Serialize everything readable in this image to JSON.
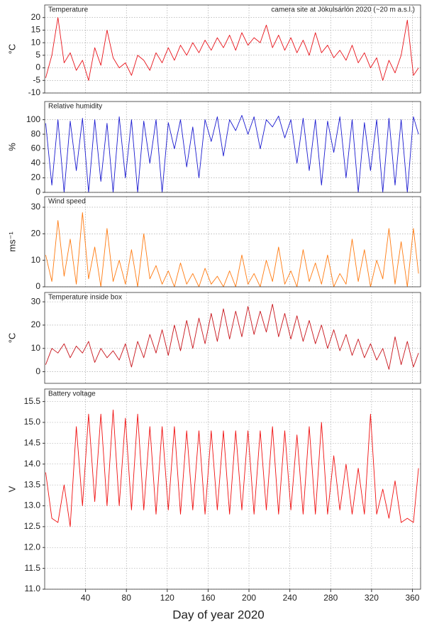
{
  "chart_data": [
    {
      "type": "line",
      "title": "Temperature",
      "annotation": "camera site at Jökulsárlón 2020 (~20  m a.s.l.)",
      "ylabel": "°C",
      "color": "#e8141b",
      "x": [
        1,
        7,
        13,
        19,
        25,
        31,
        37,
        43,
        49,
        55,
        61,
        67,
        73,
        79,
        85,
        91,
        97,
        103,
        109,
        115,
        121,
        127,
        133,
        139,
        145,
        151,
        157,
        163,
        169,
        175,
        181,
        187,
        193,
        199,
        205,
        211,
        217,
        223,
        229,
        235,
        241,
        247,
        253,
        259,
        265,
        271,
        277,
        283,
        289,
        295,
        301,
        307,
        313,
        319,
        325,
        331,
        337,
        343,
        349,
        355,
        361,
        366
      ],
      "values": [
        -4,
        5,
        20,
        2,
        6,
        -1,
        3,
        -5,
        8,
        1,
        15,
        4,
        0,
        2,
        -3,
        5,
        3,
        -1,
        6,
        2,
        8,
        3,
        9,
        5,
        10,
        6,
        11,
        7,
        12,
        8,
        13,
        7,
        14,
        9,
        12,
        10,
        17,
        8,
        13,
        7,
        12,
        6,
        11,
        5,
        14,
        6,
        9,
        4,
        7,
        3,
        9,
        2,
        6,
        0,
        4,
        -5,
        3,
        -2,
        5,
        19,
        -3,
        0
      ],
      "xlim": [
        0,
        368
      ],
      "xticks": [
        40,
        80,
        120,
        160,
        200,
        240,
        280,
        320,
        360
      ],
      "ylim": [
        -10,
        25
      ],
      "yticks": [
        -10,
        -5,
        0,
        5,
        10,
        15,
        20
      ],
      "grid": true
    },
    {
      "type": "line",
      "title": "Relative humidity",
      "ylabel": "%",
      "color": "#1a1ad0",
      "x": [
        1,
        7,
        13,
        19,
        25,
        31,
        37,
        43,
        49,
        55,
        61,
        67,
        73,
        79,
        85,
        91,
        97,
        103,
        109,
        115,
        121,
        127,
        133,
        139,
        145,
        151,
        157,
        163,
        169,
        175,
        181,
        187,
        193,
        199,
        205,
        211,
        217,
        223,
        229,
        235,
        241,
        247,
        253,
        259,
        265,
        271,
        277,
        283,
        289,
        295,
        301,
        307,
        313,
        319,
        325,
        331,
        337,
        343,
        349,
        355,
        361,
        366
      ],
      "values": [
        95,
        10,
        100,
        0,
        98,
        30,
        102,
        0,
        100,
        15,
        95,
        0,
        104,
        20,
        100,
        0,
        98,
        40,
        100,
        0,
        96,
        60,
        100,
        35,
        90,
        20,
        100,
        70,
        104,
        50,
        100,
        85,
        106,
        80,
        104,
        60,
        100,
        90,
        105,
        75,
        100,
        40,
        102,
        30,
        100,
        10,
        98,
        55,
        104,
        20,
        100,
        0,
        96,
        30,
        100,
        0,
        102,
        10,
        100,
        0,
        104,
        80
      ],
      "xlim": [
        0,
        368
      ],
      "xticks": [
        40,
        80,
        120,
        160,
        200,
        240,
        280,
        320,
        360
      ],
      "ylim": [
        0,
        125
      ],
      "yticks": [
        0,
        20,
        40,
        60,
        80,
        100
      ],
      "grid": true
    },
    {
      "type": "line",
      "title": "Wind speed",
      "ylabel": "ms⁻¹",
      "color": "#ff7a10",
      "x": [
        1,
        7,
        13,
        19,
        25,
        31,
        37,
        43,
        49,
        55,
        61,
        67,
        73,
        79,
        85,
        91,
        97,
        103,
        109,
        115,
        121,
        127,
        133,
        139,
        145,
        151,
        157,
        163,
        169,
        175,
        181,
        187,
        193,
        199,
        205,
        211,
        217,
        223,
        229,
        235,
        241,
        247,
        253,
        259,
        265,
        271,
        277,
        283,
        289,
        295,
        301,
        307,
        313,
        319,
        325,
        331,
        337,
        343,
        349,
        355,
        361,
        366
      ],
      "values": [
        12,
        2,
        25,
        4,
        18,
        1,
        28,
        3,
        15,
        0,
        22,
        2,
        10,
        1,
        14,
        0,
        20,
        3,
        8,
        1,
        6,
        0,
        9,
        1,
        5,
        0,
        7,
        1,
        4,
        0,
        6,
        0,
        12,
        1,
        5,
        0,
        10,
        2,
        15,
        1,
        6,
        0,
        14,
        2,
        9,
        1,
        12,
        0,
        5,
        1,
        18,
        2,
        14,
        0,
        10,
        3,
        22,
        1,
        17,
        0,
        22,
        5
      ],
      "xlim": [
        0,
        368
      ],
      "xticks": [
        40,
        80,
        120,
        160,
        200,
        240,
        280,
        320,
        360
      ],
      "ylim": [
        0,
        34
      ],
      "yticks": [
        0,
        10,
        20,
        30
      ],
      "grid": true
    },
    {
      "type": "line",
      "title": "Temperature inside box",
      "ylabel": "°C",
      "color": "#c8141b",
      "x": [
        1,
        7,
        13,
        19,
        25,
        31,
        37,
        43,
        49,
        55,
        61,
        67,
        73,
        79,
        85,
        91,
        97,
        103,
        109,
        115,
        121,
        127,
        133,
        139,
        145,
        151,
        157,
        163,
        169,
        175,
        181,
        187,
        193,
        199,
        205,
        211,
        217,
        223,
        229,
        235,
        241,
        247,
        253,
        259,
        265,
        271,
        277,
        283,
        289,
        295,
        301,
        307,
        313,
        319,
        325,
        331,
        337,
        343,
        349,
        355,
        361,
        366
      ],
      "values": [
        3,
        10,
        8,
        12,
        6,
        11,
        8,
        13,
        4,
        10,
        6,
        9,
        5,
        12,
        2,
        13,
        6,
        16,
        8,
        18,
        7,
        20,
        9,
        22,
        10,
        23,
        12,
        25,
        13,
        27,
        14,
        26,
        15,
        28,
        16,
        26,
        17,
        29,
        15,
        25,
        14,
        24,
        13,
        22,
        12,
        20,
        10,
        18,
        9,
        16,
        7,
        14,
        6,
        12,
        5,
        10,
        1,
        15,
        3,
        13,
        2,
        8
      ],
      "xlim": [
        0,
        368
      ],
      "xticks": [
        40,
        80,
        120,
        160,
        200,
        240,
        280,
        320,
        360
      ],
      "ylim": [
        -5,
        34
      ],
      "yticks": [
        0,
        10,
        20,
        30
      ],
      "grid": true
    },
    {
      "type": "line",
      "title": "Battery voltage",
      "ylabel": "V",
      "xlabel": "Day of year 2020",
      "color": "#f01010",
      "x": [
        1,
        7,
        13,
        19,
        25,
        31,
        37,
        43,
        49,
        55,
        61,
        67,
        73,
        79,
        85,
        91,
        97,
        103,
        109,
        115,
        121,
        127,
        133,
        139,
        145,
        151,
        157,
        163,
        169,
        175,
        181,
        187,
        193,
        199,
        205,
        211,
        217,
        223,
        229,
        235,
        241,
        247,
        253,
        259,
        265,
        271,
        277,
        283,
        289,
        295,
        301,
        307,
        313,
        319,
        325,
        331,
        337,
        343,
        349,
        355,
        361,
        366
      ],
      "values": [
        13.8,
        12.7,
        12.6,
        13.5,
        12.5,
        14.9,
        13.0,
        15.2,
        13.1,
        15.2,
        13.0,
        15.3,
        13.0,
        15.1,
        12.9,
        15.2,
        12.9,
        14.9,
        12.8,
        14.9,
        12.9,
        14.9,
        12.8,
        14.8,
        12.9,
        14.8,
        12.8,
        14.8,
        12.9,
        14.8,
        12.8,
        14.8,
        12.9,
        14.8,
        12.8,
        14.8,
        12.9,
        14.9,
        12.8,
        14.8,
        12.9,
        14.7,
        12.8,
        14.9,
        12.8,
        15.0,
        12.8,
        14.2,
        12.9,
        14.0,
        12.8,
        13.9,
        12.8,
        15.2,
        12.8,
        13.4,
        12.7,
        13.6,
        12.6,
        12.7,
        12.6,
        13.9
      ],
      "xlim": [
        0,
        368
      ],
      "xticks": [
        40,
        80,
        120,
        160,
        200,
        240,
        280,
        320,
        360
      ],
      "ylim": [
        11,
        15.8
      ],
      "yticks": [
        {
          "value": 11,
          "label": "11.0"
        },
        11.5,
        {
          "value": 12,
          "label": "12.0"
        },
        12.5,
        {
          "value": 13,
          "label": "13.0"
        },
        13.5,
        {
          "value": 14,
          "label": "14.0"
        },
        14.5,
        {
          "value": 15,
          "label": "15.0"
        },
        15.5
      ],
      "grid": true
    }
  ]
}
